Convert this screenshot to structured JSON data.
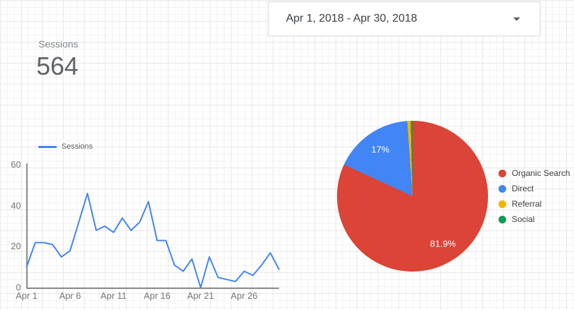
{
  "date_picker": {
    "value": "Apr 1, 2018 - Apr 30, 2018"
  },
  "scorecard": {
    "metric": "Sessions",
    "value": "564"
  },
  "chart_data": [
    {
      "type": "line",
      "legend": {
        "label": "Sessions",
        "position": "top-left"
      },
      "x": [
        "Apr 1",
        "Apr 2",
        "Apr 3",
        "Apr 4",
        "Apr 5",
        "Apr 6",
        "Apr 7",
        "Apr 8",
        "Apr 9",
        "Apr 10",
        "Apr 11",
        "Apr 12",
        "Apr 13",
        "Apr 14",
        "Apr 15",
        "Apr 16",
        "Apr 17",
        "Apr 18",
        "Apr 19",
        "Apr 20",
        "Apr 21",
        "Apr 22",
        "Apr 23",
        "Apr 24",
        "Apr 25",
        "Apr 26",
        "Apr 27",
        "Apr 28",
        "Apr 29",
        "Apr 30"
      ],
      "x_tick_labels": [
        "Apr 1",
        "Apr 6",
        "Apr 11",
        "Apr 16",
        "Apr 21",
        "Apr 26"
      ],
      "x_tick_day_offsets": [
        0,
        5,
        10,
        15,
        20,
        25
      ],
      "y_ticks": [
        0,
        20,
        40,
        60
      ],
      "ylim": [
        0,
        60
      ],
      "grid": false,
      "axis_color": "#616161",
      "series": [
        {
          "name": "Sessions",
          "color": "#4285f4",
          "values": [
            10,
            22,
            22,
            21,
            15,
            18,
            32,
            46,
            28,
            30,
            27,
            34,
            28,
            32,
            42,
            23,
            23,
            11,
            8,
            14,
            0,
            15,
            5,
            4,
            3,
            8,
            6,
            11,
            17,
            9
          ]
        }
      ]
    },
    {
      "type": "pie",
      "start_angle_deg": 0,
      "legend_position": "right",
      "slices": [
        {
          "label": "Organic Search",
          "value_pct": 81.9,
          "color": "#db4437",
          "data_label": "81.9%"
        },
        {
          "label": "Direct",
          "value_pct": 17,
          "color": "#4285f4",
          "data_label": "17%"
        },
        {
          "label": "Referral",
          "value_pct": 0.7,
          "color": "#f4b400",
          "data_label": ""
        },
        {
          "label": "Social",
          "value_pct": 0.4,
          "color": "#0f9d58",
          "data_label": ""
        }
      ]
    }
  ]
}
